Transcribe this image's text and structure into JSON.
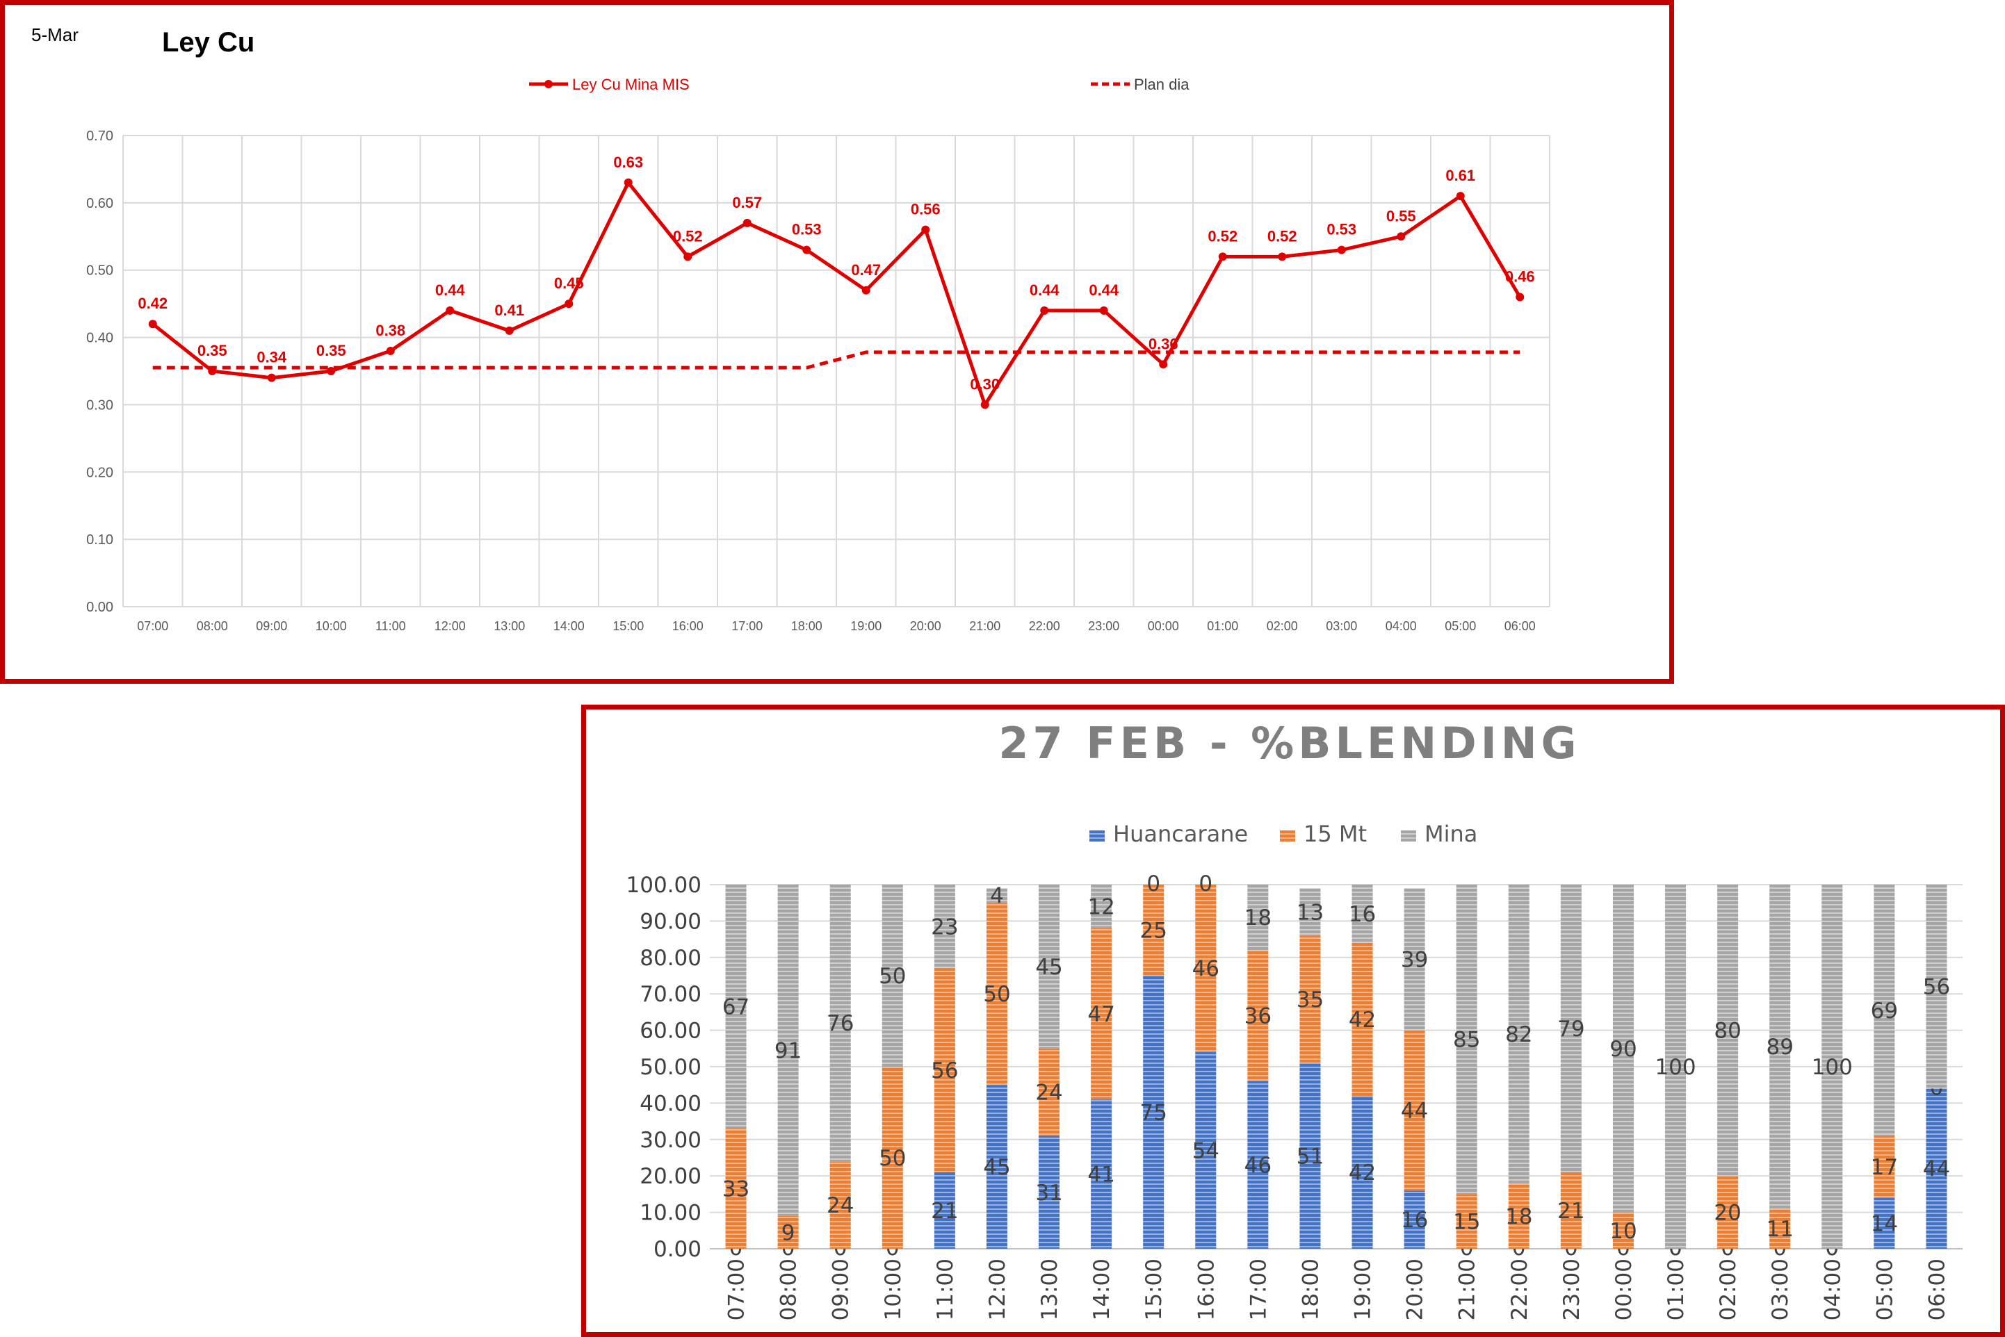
{
  "top": {
    "date_label": "5-Mar",
    "chart_data": {
      "type": "line",
      "title": "Ley Cu",
      "categories": [
        "07:00",
        "08:00",
        "09:00",
        "10:00",
        "11:00",
        "12:00",
        "13:00",
        "14:00",
        "15:00",
        "16:00",
        "17:00",
        "18:00",
        "19:00",
        "20:00",
        "21:00",
        "22:00",
        "23:00",
        "00:00",
        "01:00",
        "02:00",
        "03:00",
        "04:00",
        "05:00",
        "06:00"
      ],
      "series": [
        {
          "name": "Ley Cu Mina MIS",
          "color": "#e00000",
          "style": "solid-markers",
          "values": [
            0.42,
            0.35,
            0.34,
            0.35,
            0.38,
            0.44,
            0.41,
            0.45,
            0.63,
            0.52,
            0.57,
            0.53,
            0.47,
            0.56,
            0.3,
            0.44,
            0.44,
            0.36,
            0.52,
            0.52,
            0.53,
            0.55,
            0.61,
            0.46
          ],
          "labels": [
            "0.42",
            "0.35",
            "0.34",
            "0.35",
            "0.38",
            "0.44",
            "0.41",
            "0.45",
            "0.63",
            "0.52",
            "0.57",
            "0.53",
            "0.47",
            "0.56",
            "0.30",
            "0.44",
            "0.44",
            "0.36",
            "0.52",
            "0.52",
            "0.53",
            "0.55",
            "0.61",
            "0.46"
          ]
        },
        {
          "name": "Plan dia",
          "color": "#e00000",
          "style": "dashed",
          "values": [
            0.355,
            0.355,
            0.355,
            0.355,
            0.355,
            0.355,
            0.355,
            0.355,
            0.355,
            0.355,
            0.355,
            0.355,
            0.378,
            0.378,
            0.378,
            0.378,
            0.378,
            0.378,
            0.378,
            0.378,
            0.378,
            0.378,
            0.378,
            0.378
          ]
        }
      ],
      "ylim": [
        0,
        0.7
      ],
      "yticks": [
        "0.00",
        "0.10",
        "0.20",
        "0.30",
        "0.40",
        "0.50",
        "0.60",
        "0.70"
      ],
      "grid": true,
      "legend_position": "top"
    }
  },
  "bottom": {
    "chart_data": {
      "type": "bar",
      "stacked": true,
      "title": "27 FEB - %BLENDING",
      "categories": [
        "07:00",
        "08:00",
        "09:00",
        "10:00",
        "11:00",
        "12:00",
        "13:00",
        "14:00",
        "15:00",
        "16:00",
        "17:00",
        "18:00",
        "19:00",
        "20:00",
        "21:00",
        "22:00",
        "23:00",
        "00:00",
        "01:00",
        "02:00",
        "03:00",
        "04:00",
        "05:00",
        "06:00"
      ],
      "series": [
        {
          "name": "Huancarane",
          "color": "#4472c4",
          "values": [
            0,
            0,
            0,
            0,
            21,
            45,
            31,
            41,
            75,
            54,
            46,
            51,
            42,
            16,
            0,
            0,
            0,
            0,
            0,
            0,
            0,
            0,
            14,
            44
          ]
        },
        {
          "name": "15 Mt",
          "color": "#ed7d31",
          "values": [
            33,
            9,
            24,
            50,
            56,
            50,
            24,
            47,
            25,
            46,
            36,
            35,
            42,
            44,
            15,
            18,
            21,
            10,
            0,
            20,
            11,
            0,
            17,
            0
          ]
        },
        {
          "name": "Mina",
          "color": "#a5a5a5",
          "values": [
            67,
            91,
            76,
            50,
            23,
            4,
            45,
            12,
            0,
            0,
            18,
            13,
            16,
            39,
            85,
            82,
            79,
            90,
            100,
            80,
            89,
            100,
            69,
            56
          ]
        }
      ],
      "ylim": [
        0,
        100
      ],
      "yticks": [
        "0.00",
        "10.00",
        "20.00",
        "30.00",
        "40.00",
        "50.00",
        "60.00",
        "70.00",
        "80.00",
        "90.00",
        "100.00"
      ],
      "grid": true,
      "legend_position": "top"
    }
  }
}
